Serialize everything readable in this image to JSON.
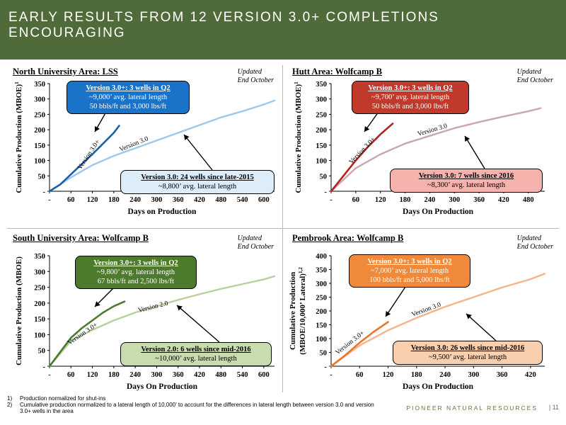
{
  "header": {
    "title": "EARLY RESULTS FROM 12 VERSION 3.0+ COMPLETIONS ENCOURAGING"
  },
  "panels": [
    {
      "title": "North University Area: LSS",
      "updated": "Updated\nEnd October",
      "xlabel": "Days on Production",
      "ylabel": "Cumulative Production (MBOE)",
      "ylabel_sup": "1",
      "xticks": [
        "-",
        "60",
        "120",
        "180",
        "240",
        "300",
        "360",
        "420",
        "480",
        "540",
        "600"
      ],
      "yticks": [
        "-",
        "50",
        "100",
        "150",
        "200",
        "250",
        "300",
        "350"
      ],
      "callout_top": {
        "head": "Version 3.0+: 3 wells in Q2",
        "lines": [
          "~9,000’ avg. lateral length",
          "50 bbls/ft and 3,000 lbs/ft"
        ],
        "bg": "#1a73c8",
        "color": "#ffffff"
      },
      "callout_bottom": {
        "head": "Version 3.0: 24 wells since late-2015",
        "lines": [
          "~8,800’ avg. lateral length"
        ],
        "bg": "#dcecf8",
        "color": "#000000"
      },
      "line_label_new": "Version 3.0+",
      "line_label_old": "Version 3.0"
    },
    {
      "title": "Hutt Area: Wolfcamp B",
      "updated": "Updated\nEnd October",
      "xlabel": "Days On Production",
      "ylabel": "Cumulative Production (MBOE)",
      "ylabel_sup": "1",
      "xticks": [
        "-",
        "60",
        "120",
        "180",
        "240",
        "300",
        "360",
        "420",
        "480"
      ],
      "yticks": [
        "-",
        "50",
        "100",
        "150",
        "200",
        "250",
        "300",
        "350"
      ],
      "callout_top": {
        "head": "Version 3.0+: 3 wells in Q2",
        "lines": [
          "~9,700’ avg. lateral length",
          "50 bbls/ft and 3,000 lbs/ft"
        ],
        "bg": "#c0392b",
        "color": "#ffffff"
      },
      "callout_bottom": {
        "head": "Version 3.0: 7 wells since 2016",
        "lines": [
          "~8,300’ avg. lateral length"
        ],
        "bg": "#f6b3ae",
        "color": "#000000"
      },
      "line_label_new": "Version 3.0+",
      "line_label_old": "Version 3.0"
    },
    {
      "title": "South University Area: Wolfcamp B",
      "updated": "Updated\nEnd October",
      "xlabel": "Days On Production",
      "ylabel": "Cumulative Production (MBOE)",
      "ylabel_sup": "",
      "xticks": [
        "-",
        "60",
        "120",
        "180",
        "240",
        "300",
        "360",
        "420",
        "480",
        "540",
        "600"
      ],
      "yticks": [
        "-",
        "50",
        "100",
        "150",
        "200",
        "250",
        "300",
        "350"
      ],
      "callout_top": {
        "head": "Version 3.0+: 3 wells in Q2",
        "lines": [
          "~9,800’ avg. lateral length",
          "67 bbls/ft and 2,500 lbs/ft"
        ],
        "bg": "#4e7a2e",
        "color": "#ffffff"
      },
      "callout_bottom": {
        "head": "Version 2.0: 6 wells since mid-2016",
        "lines": [
          "~10,000’ avg. lateral length"
        ],
        "bg": "#c9dcb0",
        "color": "#000000"
      },
      "line_label_new": "Version 3.0+",
      "line_label_old": "Version 2.0"
    },
    {
      "title": "Pembrook Area: Wolfcamp B",
      "updated": "Updated\nEnd October",
      "xlabel": "Days On Production",
      "ylabel": "Cumulative Production",
      "ylabel2": "(MBOE/10,000’ Lateral)",
      "ylabel_sup": "1,2",
      "xticks": [
        "-",
        "60",
        "120",
        "180",
        "240",
        "300",
        "360",
        "420"
      ],
      "yticks": [
        "-",
        "50",
        "100",
        "150",
        "200",
        "250",
        "300",
        "350",
        "400"
      ],
      "callout_top": {
        "head": "Version 3.0+: 3 wells in Q2",
        "lines": [
          "~7,000’ avg. lateral length",
          "100 bbls/ft and 5,000 lbs/ft"
        ],
        "bg": "#f08a3a",
        "color": "#ffffff"
      },
      "callout_bottom": {
        "head": "Version 3.0: 26 wells since mid-2016",
        "lines": [
          "~9,500’ avg. lateral length"
        ],
        "bg": "#f9cfae",
        "color": "#000000"
      },
      "line_label_new": "Version 3.0+",
      "line_label_old": "Version 3.0"
    }
  ],
  "chart_data": [
    {
      "type": "line",
      "title": "North University Area: LSS",
      "xlabel": "Days on Production",
      "ylabel": "Cumulative Production (MBOE)",
      "xlim": [
        0,
        630
      ],
      "ylim": [
        0,
        350
      ],
      "series": [
        {
          "name": "Version 3.0+",
          "color": "#1a5fa8",
          "x": [
            0,
            30,
            60,
            90,
            120,
            150,
            180,
            195
          ],
          "y": [
            0,
            22,
            55,
            88,
            120,
            155,
            190,
            213
          ]
        },
        {
          "name": "Version 3.0",
          "color": "#9ec8ea",
          "x": [
            0,
            60,
            120,
            180,
            240,
            300,
            360,
            420,
            480,
            540,
            600,
            630
          ],
          "y": [
            0,
            45,
            85,
            115,
            140,
            165,
            190,
            215,
            240,
            260,
            282,
            295
          ]
        }
      ]
    },
    {
      "type": "line",
      "title": "Hutt Area: Wolfcamp B",
      "xlabel": "Days On Production",
      "ylabel": "Cumulative Production (MBOE)",
      "xlim": [
        0,
        520
      ],
      "ylim": [
        0,
        350
      ],
      "series": [
        {
          "name": "Version 3.0+",
          "color": "#b22222",
          "x": [
            0,
            30,
            60,
            90,
            120,
            150
          ],
          "y": [
            0,
            50,
            100,
            145,
            185,
            220
          ]
        },
        {
          "name": "Version 3.0",
          "color": "#c9a7ad",
          "x": [
            0,
            60,
            120,
            180,
            240,
            300,
            360,
            420,
            480,
            510
          ],
          "y": [
            0,
            75,
            120,
            155,
            180,
            205,
            225,
            243,
            260,
            270
          ]
        }
      ]
    },
    {
      "type": "line",
      "title": "South University Area: Wolfcamp B",
      "xlabel": "Days On Production",
      "ylabel": "Cumulative Production (MBOE)",
      "xlim": [
        0,
        630
      ],
      "ylim": [
        0,
        350
      ],
      "series": [
        {
          "name": "Version 3.0+",
          "color": "#4e7a2e",
          "x": [
            0,
            30,
            60,
            90,
            120,
            150,
            180,
            210
          ],
          "y": [
            0,
            45,
            90,
            120,
            145,
            170,
            190,
            205
          ]
        },
        {
          "name": "Version 2.0",
          "color": "#b9d09e",
          "x": [
            0,
            60,
            120,
            180,
            240,
            300,
            360,
            420,
            480,
            540,
            600,
            630
          ],
          "y": [
            0,
            80,
            115,
            145,
            170,
            190,
            210,
            228,
            245,
            260,
            275,
            285
          ]
        }
      ]
    },
    {
      "type": "line",
      "title": "Pembrook Area: Wolfcamp B",
      "xlabel": "Days On Production",
      "ylabel": "Cumulative Production (MBOE/10,000’ Lateral)",
      "xlim": [
        0,
        450
      ],
      "ylim": [
        0,
        400
      ],
      "series": [
        {
          "name": "Version 3.0+",
          "color": "#e8762b",
          "x": [
            0,
            30,
            60,
            90,
            120
          ],
          "y": [
            0,
            40,
            85,
            125,
            160
          ]
        },
        {
          "name": "Version 3.0",
          "color": "#f3b48a",
          "x": [
            0,
            60,
            120,
            180,
            240,
            300,
            360,
            420,
            450
          ],
          "y": [
            0,
            75,
            130,
            175,
            215,
            250,
            285,
            315,
            335
          ]
        }
      ]
    }
  ],
  "footnotes": [
    {
      "num": "1)",
      "text": "Production normalized for shut-ins"
    },
    {
      "num": "2)",
      "text": "Cumulative production normalized to a lateral length of 10,000’ to account for the differences in lateral length between version 3.0 and version 3.0+ wells in the area"
    }
  ],
  "footer": {
    "brand": "PIONEER NATURAL RESOURCES",
    "page": "|  11"
  }
}
